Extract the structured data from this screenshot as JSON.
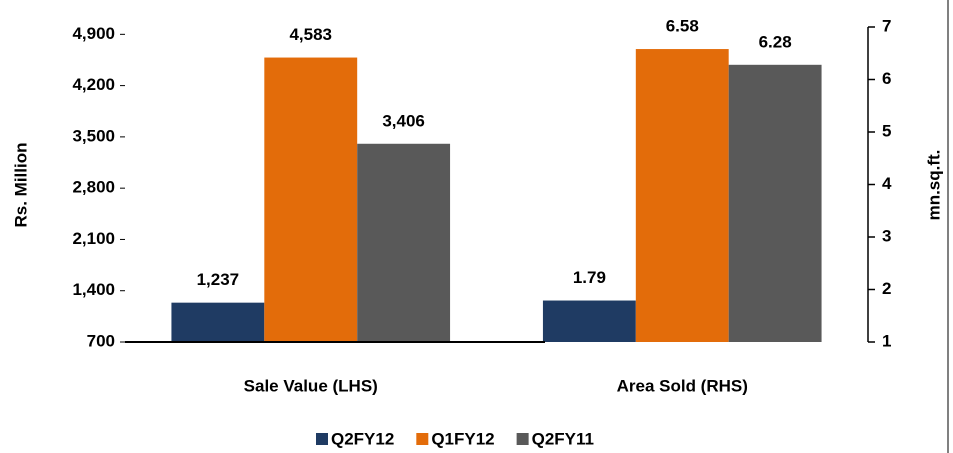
{
  "chart_data": {
    "type": "bar",
    "categories": [
      "Sale Value (LHS)",
      "Area Sold (RHS)"
    ],
    "category_axes": [
      "y",
      "y2"
    ],
    "ylabel": "Rs. Million",
    "y2label": "mn.sq.ft.",
    "ylim": [
      700,
      5000
    ],
    "yticks": [
      700,
      {
        "value": 1400,
        "label": "1,400"
      },
      {
        "value": 2100,
        "label": "2,100"
      },
      {
        "value": 2800,
        "label": "2,800"
      },
      {
        "value": 3500,
        "label": "3,500"
      },
      {
        "value": 4200,
        "label": "4,200"
      },
      {
        "value": 4900,
        "label": "4,900"
      }
    ],
    "y2lim": [
      1,
      7
    ],
    "y2ticks": [
      1,
      2,
      3,
      4,
      5,
      6,
      7
    ],
    "legend": "bottom",
    "series": [
      {
        "name": "Q2FY12",
        "color": "#1f3b63",
        "values": [
          1237,
          1.79
        ],
        "value_labels": [
          "1,237",
          "1.79"
        ]
      },
      {
        "name": "Q1FY12",
        "color": "#e36c0a",
        "values": [
          4583,
          6.58
        ],
        "value_labels": [
          "4,583",
          "6.58"
        ]
      },
      {
        "name": "Q2FY11",
        "color": "#595959",
        "values": [
          3406,
          6.28
        ],
        "value_labels": [
          "3,406",
          "6.28"
        ]
      }
    ]
  }
}
